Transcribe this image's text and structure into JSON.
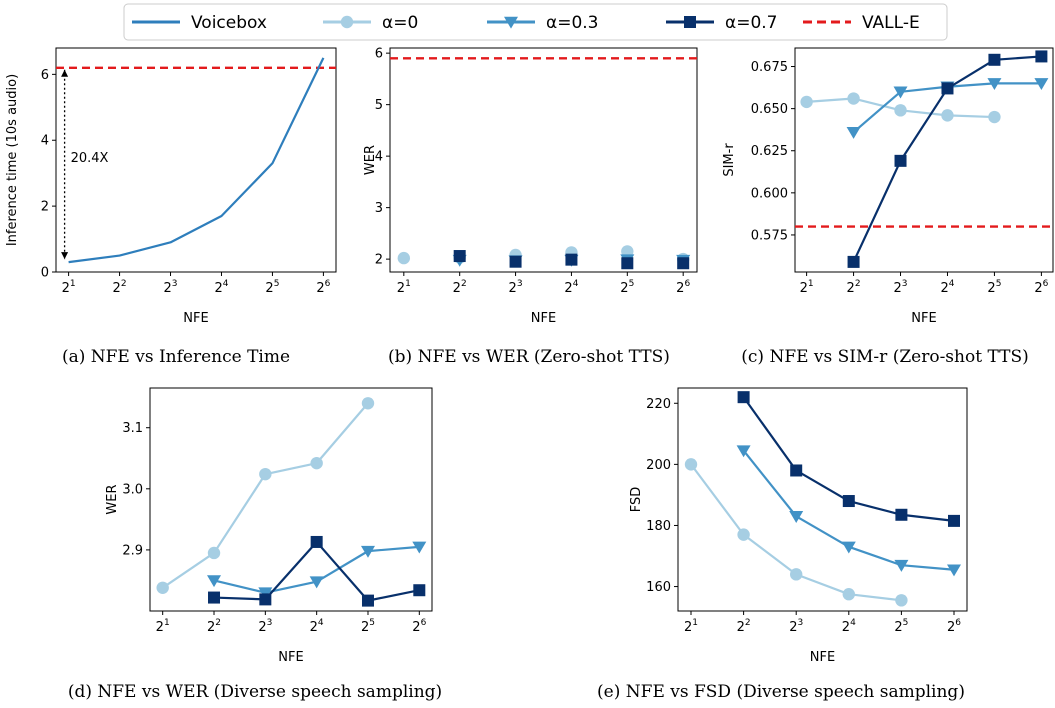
{
  "legend": {
    "location": "top",
    "entries": [
      {
        "label": "Voicebox",
        "color": "#2e7ebc",
        "marker": "line"
      },
      {
        "label": "α=0",
        "color": "#a6cee3",
        "marker": "circle"
      },
      {
        "label": "α=0.3",
        "color": "#4292c6",
        "marker": "triangle-down"
      },
      {
        "label": "α=0.7",
        "color": "#08306b",
        "marker": "square"
      },
      {
        "label": "VALL-E",
        "color": "#e31a1c",
        "marker": "dashed-line"
      }
    ]
  },
  "colors": {
    "voicebox": "#2e7ebc",
    "alpha0": "#a6cee3",
    "alpha03": "#4292c6",
    "alpha07": "#08306b",
    "valle": "#e31a1c"
  },
  "chart_data": [
    {
      "id": "a",
      "type": "line",
      "caption": "(a) NFE vs Inference Time",
      "xlabel": "NFE",
      "ylabel": "Inference time (10s audio)",
      "x": [
        1,
        2,
        3,
        4,
        5,
        6
      ],
      "xticklabels": [
        "1",
        "2",
        "3",
        "4",
        "5",
        "6"
      ],
      "ylim": [
        0,
        6.8
      ],
      "yticks": [
        0,
        2,
        4,
        6
      ],
      "yticklabels": [
        "0",
        "2",
        "4",
        "6"
      ],
      "series": [
        {
          "name": "Voicebox",
          "key": "voicebox",
          "values": [
            0.3,
            0.5,
            0.9,
            1.7,
            3.3,
            6.5
          ]
        }
      ],
      "hline": {
        "key": "valle",
        "value": 6.2
      },
      "annotation": {
        "text": "20.4X",
        "x": 1,
        "y_from": 0.3,
        "y_to": 6.2
      }
    },
    {
      "id": "b",
      "type": "scatter",
      "caption": "(b) NFE vs WER (Zero-shot TTS)",
      "xlabel": "NFE",
      "ylabel": "WER",
      "x": [
        1,
        2,
        3,
        4,
        5,
        6
      ],
      "xticklabels": [
        "1",
        "2",
        "3",
        "4",
        "5",
        "6"
      ],
      "ylim": [
        1.75,
        6.1
      ],
      "yticks": [
        2,
        3,
        4,
        5,
        6
      ],
      "yticklabels": [
        "2",
        "3",
        "4",
        "5",
        "6"
      ],
      "series": [
        {
          "name": "α=0",
          "key": "alpha0",
          "values": [
            2.02,
            2.03,
            2.08,
            2.13,
            2.15,
            2.0
          ]
        },
        {
          "name": "α=0.3",
          "key": "alpha03",
          "values": [
            null,
            1.98,
            1.97,
            1.98,
            1.99,
            1.98
          ]
        },
        {
          "name": "α=0.7",
          "key": "alpha07",
          "values": [
            null,
            2.06,
            1.95,
            1.99,
            1.92,
            1.92
          ]
        }
      ],
      "hline": {
        "key": "valle",
        "value": 5.9
      }
    },
    {
      "id": "c",
      "type": "line",
      "caption": "(c) NFE vs SIM-r (Zero-shot TTS)",
      "xlabel": "NFE",
      "ylabel": "SIM-r",
      "x": [
        1,
        2,
        3,
        4,
        5,
        6
      ],
      "xticklabels": [
        "1",
        "2",
        "3",
        "4",
        "5",
        "6"
      ],
      "ylim": [
        0.553,
        0.686
      ],
      "yticks": [
        0.575,
        0.6,
        0.625,
        0.65,
        0.675
      ],
      "yticklabels": [
        "0.575",
        "0.600",
        "0.625",
        "0.650",
        "0.675"
      ],
      "series": [
        {
          "name": "α=0",
          "key": "alpha0",
          "values": [
            0.654,
            0.656,
            0.649,
            0.646,
            0.645,
            null
          ]
        },
        {
          "name": "α=0.3",
          "key": "alpha03",
          "values": [
            null,
            0.636,
            0.66,
            0.663,
            0.665,
            0.665
          ]
        },
        {
          "name": "α=0.7",
          "key": "alpha07",
          "values": [
            null,
            0.559,
            0.619,
            0.662,
            0.679,
            0.681
          ]
        }
      ],
      "hline": {
        "key": "valle",
        "value": 0.58
      }
    },
    {
      "id": "d",
      "type": "line",
      "caption": "(d) NFE vs WER (Diverse speech sampling)",
      "xlabel": "NFE",
      "ylabel": "WER",
      "x": [
        1,
        2,
        3,
        4,
        5,
        6
      ],
      "xticklabels": [
        "1",
        "2",
        "3",
        "4",
        "5",
        "6"
      ],
      "ylim": [
        2.8,
        3.165
      ],
      "yticks": [
        2.9,
        3.0,
        3.1
      ],
      "yticklabels": [
        "2.9",
        "3.0",
        "3.1"
      ],
      "series": [
        {
          "name": "α=0",
          "key": "alpha0",
          "values": [
            2.838,
            2.895,
            3.024,
            3.042,
            3.14,
            null
          ]
        },
        {
          "name": "α=0.3",
          "key": "alpha03",
          "values": [
            null,
            2.85,
            2.83,
            2.848,
            2.898,
            2.905
          ]
        },
        {
          "name": "α=0.7",
          "key": "alpha07",
          "values": [
            null,
            2.822,
            2.819,
            2.913,
            2.817,
            2.834
          ]
        }
      ]
    },
    {
      "id": "e",
      "type": "line",
      "caption": "(e) NFE vs FSD (Diverse speech sampling)",
      "xlabel": "NFE",
      "ylabel": "FSD",
      "x": [
        1,
        2,
        3,
        4,
        5,
        6
      ],
      "xticklabels": [
        "1",
        "2",
        "3",
        "4",
        "5",
        "6"
      ],
      "ylim": [
        152,
        225
      ],
      "yticks": [
        160,
        180,
        200,
        220
      ],
      "yticklabels": [
        "160",
        "180",
        "200",
        "220"
      ],
      "series": [
        {
          "name": "α=0",
          "key": "alpha0",
          "values": [
            200,
            177,
            164,
            157.5,
            155.5,
            null
          ]
        },
        {
          "name": "α=0.3",
          "key": "alpha03",
          "values": [
            null,
            204.5,
            183,
            173,
            167,
            165.5
          ]
        },
        {
          "name": "α=0.7",
          "key": "alpha07",
          "values": [
            null,
            222,
            198,
            188,
            183.5,
            181.5
          ]
        }
      ]
    }
  ]
}
